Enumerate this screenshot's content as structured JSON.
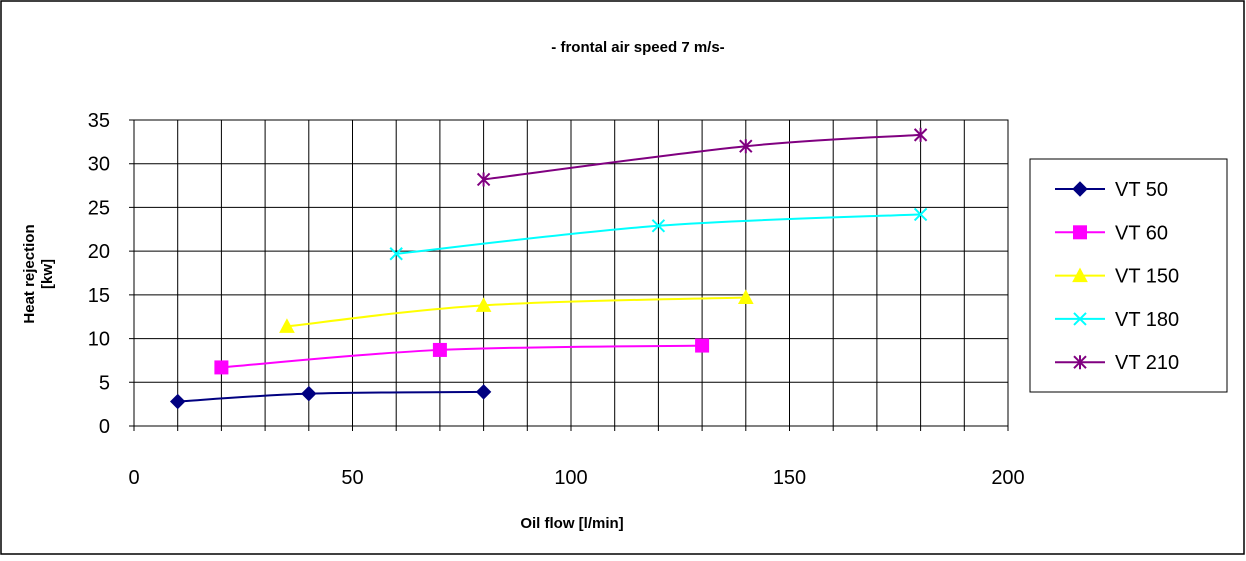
{
  "chart_data": {
    "type": "line",
    "title": "- frontal air speed 7 m/s-",
    "xlabel": "Oil flow [l/min]",
    "ylabel": "Heat rejection [kw]",
    "xlim": [
      0,
      200
    ],
    "ylim": [
      0,
      35
    ],
    "x_ticks": [
      "0",
      "50",
      "100",
      "150",
      "200"
    ],
    "y_ticks": [
      "0",
      "5",
      "10",
      "15",
      "20",
      "25",
      "30",
      "35"
    ],
    "grid": true,
    "legend_position": "right",
    "series": [
      {
        "name": "VT 50",
        "color": "#000080",
        "marker": "diamond",
        "points": [
          [
            10,
            2.8
          ],
          [
            40,
            3.7
          ],
          [
            80,
            3.9
          ]
        ]
      },
      {
        "name": "VT 60",
        "color": "#ff00ff",
        "marker": "square",
        "points": [
          [
            20,
            6.7
          ],
          [
            70,
            8.7
          ],
          [
            130,
            9.2
          ]
        ]
      },
      {
        "name": "VT 150",
        "color": "#ffff00",
        "marker": "triangle",
        "points": [
          [
            35,
            11.4
          ],
          [
            80,
            13.8
          ],
          [
            140,
            14.7
          ]
        ]
      },
      {
        "name": "VT 180",
        "color": "#00ffff",
        "marker": "x",
        "points": [
          [
            60,
            19.7
          ],
          [
            120,
            22.9
          ],
          [
            180,
            24.2
          ]
        ]
      },
      {
        "name": "VT 210",
        "color": "#800080",
        "marker": "star",
        "points": [
          [
            80,
            28.2
          ],
          [
            140,
            32.0
          ],
          [
            180,
            33.3
          ]
        ]
      }
    ]
  }
}
